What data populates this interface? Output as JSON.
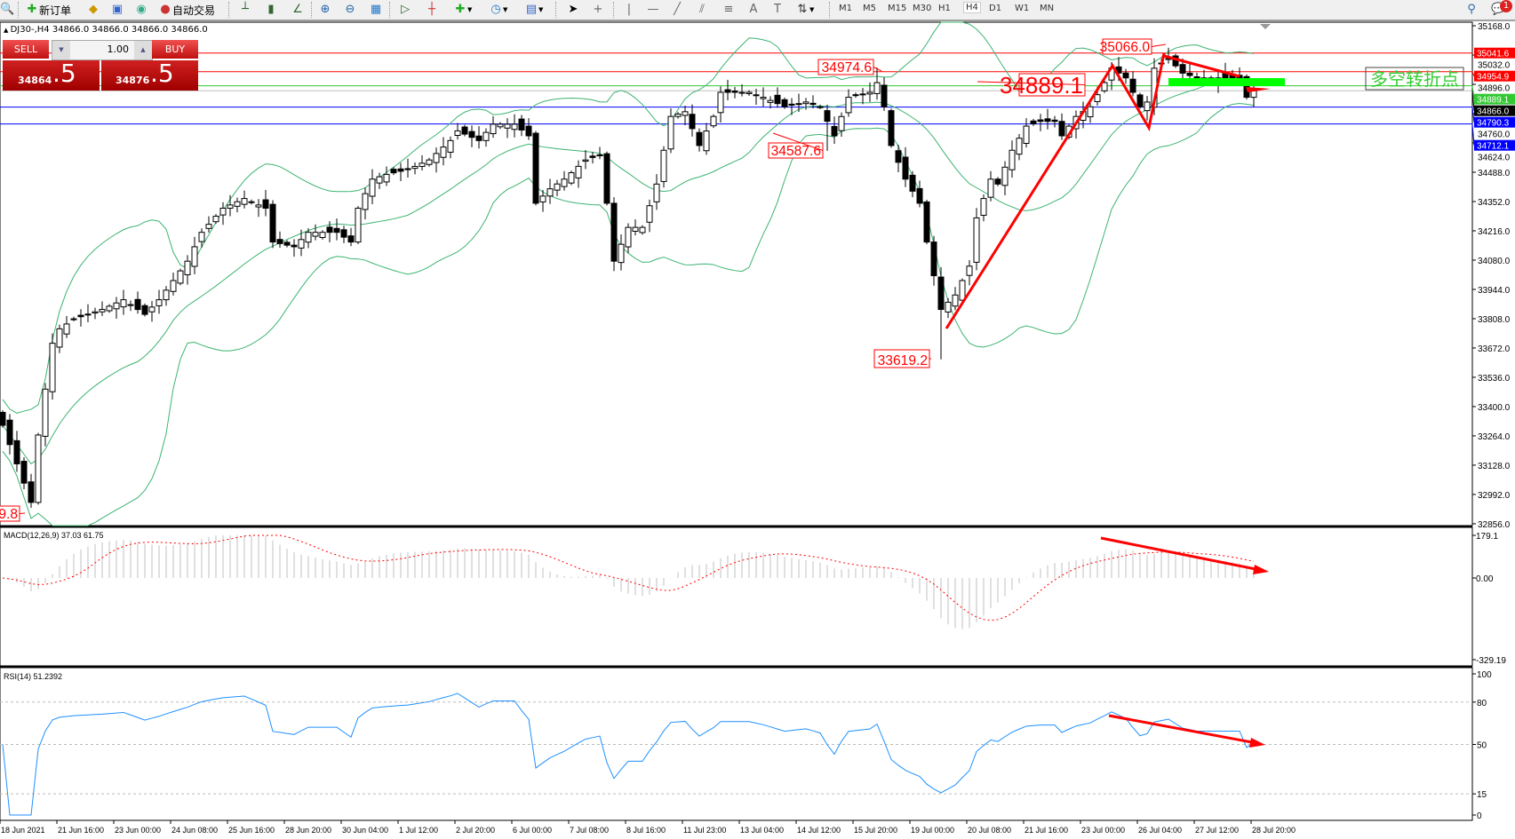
{
  "toolbar": {
    "new_order": "新订单",
    "auto_trading": "自动交易",
    "timeframes": [
      "M1",
      "M5",
      "M15",
      "M30",
      "H1",
      "H4",
      "D1",
      "W1",
      "MN"
    ],
    "active_timeframe": "H4",
    "notification_count": "1"
  },
  "chart_header": "DJ30-,H4  34866.0 34866.0 34866.0 34866.0",
  "one_click": {
    "sell_label": "SELL",
    "buy_label": "BUY",
    "lot": "1.00",
    "sell_price_main": "34864",
    "sell_price_frac": ".5",
    "buy_price_main": "34876",
    "buy_price_frac": ".5"
  },
  "colors": {
    "bollinger": "#3cb371",
    "annotation": "#ff0000",
    "rsi_line": "#1e90ff",
    "macd_hist": "#c0c0c0",
    "macd_signal": "#ff0000",
    "turning_bar": "#00ff00"
  },
  "chart_data": {
    "type": "candlestick",
    "symbol": "DJ30-",
    "timeframe": "H4",
    "price_axis": {
      "min": 32856.0,
      "max": 35168.0,
      "ticks": [
        "35168.0",
        "35032.0",
        "34896.0",
        "34760.0",
        "34624.0",
        "34488.0",
        "34352.0",
        "34216.0",
        "34080.0",
        "33944.0",
        "33808.0",
        "33672.0",
        "33536.0",
        "33400.0",
        "33264.0",
        "33128.0",
        "32992.0",
        "32856.0"
      ]
    },
    "time_labels": [
      "18 Jun 2021",
      "21 Jun 16:00",
      "23 Jun 00:00",
      "24 Jun 08:00",
      "25 Jun 16:00",
      "28 Jun 20:00",
      "30 Jun 04:00",
      "1 Jul 12:00",
      "2 Jul 20:00",
      "6 Jul 00:00",
      "7 Jul 08:00",
      "8 Jul 16:00",
      "11 Jul 23:00",
      "13 Jul 04:00",
      "14 Jul 12:00",
      "15 Jul 20:00",
      "19 Jul 00:00",
      "20 Jul 08:00",
      "21 Jul 16:00",
      "23 Jul 00:00",
      "26 Jul 04:00",
      "27 Jul 12:00",
      "28 Jul 20:00"
    ],
    "approx_closes": [
      [
        0,
        33313
      ],
      [
        4,
        32955
      ],
      [
        5,
        33268
      ],
      [
        7,
        33694
      ],
      [
        8,
        33761
      ],
      [
        10,
        33806
      ],
      [
        14,
        33851
      ],
      [
        17,
        33896
      ],
      [
        20,
        33828
      ],
      [
        22,
        33896
      ],
      [
        24,
        33985
      ],
      [
        26,
        34075
      ],
      [
        28,
        34209
      ],
      [
        31,
        34321
      ],
      [
        34,
        34366
      ],
      [
        37,
        34321
      ],
      [
        38,
        34164
      ],
      [
        41,
        34142
      ],
      [
        43,
        34209
      ],
      [
        47,
        34209
      ],
      [
        49,
        34164
      ],
      [
        50,
        34321
      ],
      [
        52,
        34456
      ],
      [
        54,
        34478
      ],
      [
        57,
        34500
      ],
      [
        60,
        34545
      ],
      [
        63,
        34635
      ],
      [
        64,
        34680
      ],
      [
        67,
        34635
      ],
      [
        69,
        34711
      ],
      [
        72,
        34711
      ],
      [
        74,
        34657
      ],
      [
        75,
        34344
      ],
      [
        77,
        34411
      ],
      [
        79,
        34456
      ],
      [
        82,
        34545
      ],
      [
        84,
        34568
      ],
      [
        85,
        34344
      ],
      [
        86,
        34075
      ],
      [
        88,
        34232
      ],
      [
        90,
        34232
      ],
      [
        92,
        34433
      ],
      [
        94,
        34747
      ],
      [
        96,
        34769
      ],
      [
        98,
        34612
      ],
      [
        100,
        34747
      ],
      [
        101,
        34859
      ],
      [
        105,
        34859
      ],
      [
        107,
        34836
      ],
      [
        110,
        34792
      ],
      [
        113,
        34814
      ],
      [
        115,
        34792
      ],
      [
        117,
        34657
      ],
      [
        119,
        34836
      ],
      [
        122,
        34859
      ],
      [
        123,
        34904
      ],
      [
        124,
        34792
      ],
      [
        125,
        34612
      ],
      [
        127,
        34456
      ],
      [
        129,
        34344
      ],
      [
        130,
        34164
      ],
      [
        132,
        33851
      ],
      [
        134,
        33918
      ],
      [
        136,
        34052
      ],
      [
        137,
        34276
      ],
      [
        139,
        34456
      ],
      [
        140,
        34433
      ],
      [
        142,
        34590
      ],
      [
        144,
        34702
      ],
      [
        146,
        34724
      ],
      [
        148,
        34724
      ],
      [
        149,
        34657
      ],
      [
        151,
        34747
      ],
      [
        153,
        34792
      ],
      [
        155,
        34904
      ],
      [
        156,
        34971
      ],
      [
        158,
        34926
      ],
      [
        160,
        34792
      ],
      [
        161,
        34814
      ],
      [
        162,
        34971
      ],
      [
        164,
        35016
      ],
      [
        166,
        34948
      ],
      [
        168,
        34926
      ],
      [
        171,
        34926
      ],
      [
        174,
        34926
      ],
      [
        175,
        34836
      ],
      [
        176,
        34866
      ]
    ],
    "price_lines": [
      {
        "value": "35041.6",
        "color": "#ff0000"
      },
      {
        "value": "34954.9",
        "color": "#ff0000"
      },
      {
        "value": "34889.1",
        "color": "#32c832"
      },
      {
        "value": "34866.0",
        "color": "#000000"
      },
      {
        "value": "34790.3",
        "color": "#0000ff"
      },
      {
        "value": "34712.1",
        "color": "#0000ff"
      }
    ],
    "annotations": [
      "34974.6",
      "34587.6",
      "34889.1",
      "35066.0",
      "33619.2",
      "9.8"
    ],
    "turning_point_label": "多空转折点",
    "indicators": {
      "bollinger": {
        "period": 20,
        "deviation": 2
      },
      "macd": {
        "label": "MACD(12,26,9) 37.03 61.75",
        "axis": [
          "179.1",
          "0.00",
          "-329.19"
        ],
        "min": -329.19,
        "max": 179.1
      },
      "rsi": {
        "label": "RSI(14) 51.2392",
        "axis": [
          "100",
          "80",
          "50",
          "15",
          "0"
        ],
        "levels": [
          80,
          50,
          15
        ]
      }
    }
  }
}
